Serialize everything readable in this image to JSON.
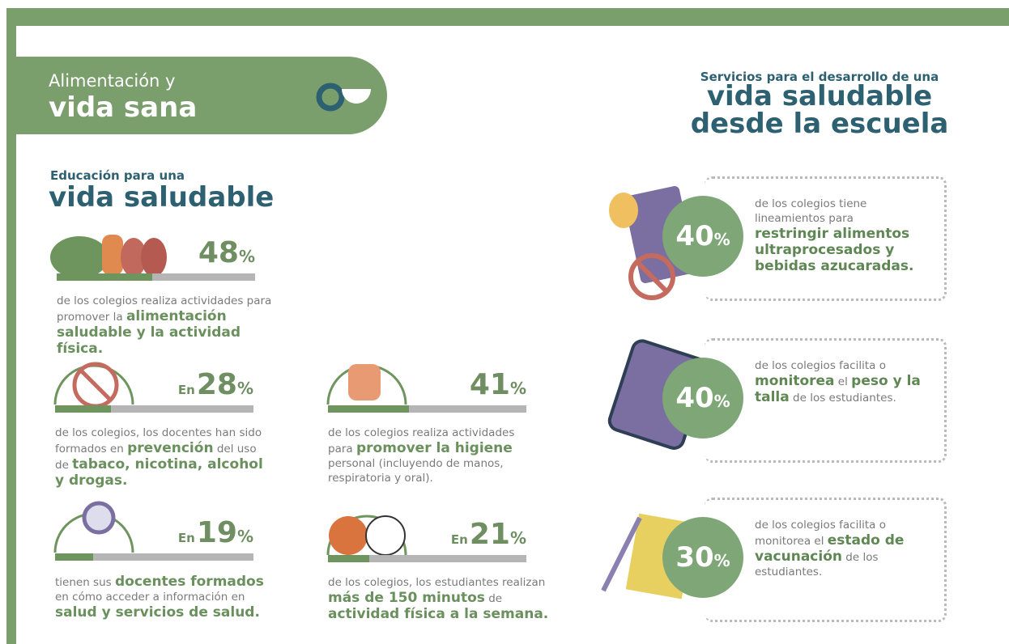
{
  "header": {
    "line1": "Alimentación y",
    "line2": "vida sana"
  },
  "right_title": {
    "kicker": "Servicios para el desarrollo de una",
    "line1": "vida saludable",
    "line2": "desde la escuela"
  },
  "left_title": {
    "kicker": "Educación para una",
    "main": "vida saludable"
  },
  "education_stats": [
    {
      "value": 48,
      "unit": "%",
      "text": [
        "de los colegios realiza actividades para promover la ",
        {
          "strong": "alimentación saludable y la actividad física."
        }
      ]
    },
    {
      "prefix": "En",
      "value": 28,
      "unit": "%",
      "text": [
        "de los colegios, los docentes han sido formados en ",
        {
          "strong": "prevención"
        },
        " del uso de ",
        {
          "strong": "tabaco, nicotina, alcohol y drogas."
        }
      ]
    },
    {
      "prefix": "En",
      "value": 19,
      "unit": "%",
      "text": [
        "tienen sus ",
        {
          "strong": "docentes formados"
        },
        " en cómo acceder a información en ",
        {
          "strong": "salud y servicios de salud."
        }
      ]
    },
    {
      "value": 41,
      "unit": "%",
      "text": [
        "de los colegios realiza actividades para ",
        {
          "strong": "promover la higiene"
        },
        " personal (incluyendo de manos, respiratoria y oral)."
      ]
    },
    {
      "prefix": "En",
      "value": 21,
      "unit": "%",
      "text": [
        "de los colegios, los estudiantes realizan ",
        {
          "strong": "más de 150 minutos"
        },
        " de ",
        {
          "strong": "actividad física a la semana."
        }
      ]
    }
  ],
  "services": [
    {
      "value": 40,
      "unit": "%",
      "text": [
        "de los colegios tiene lineamientos para ",
        {
          "strong": "restringir alimentos ultraprocesados y bebidas azucaradas."
        }
      ]
    },
    {
      "value": 40,
      "unit": "%",
      "text": [
        "de los colegios facilita o ",
        {
          "strong": "monitorea"
        },
        " el ",
        {
          "strong": "peso y la talla"
        },
        " de los estudiantes."
      ]
    },
    {
      "value": 30,
      "unit": "%",
      "text": [
        "de los colegios facilita o monitorea el ",
        {
          "strong": "estado de vacunación"
        },
        " de los estudiantes."
      ]
    }
  ]
}
